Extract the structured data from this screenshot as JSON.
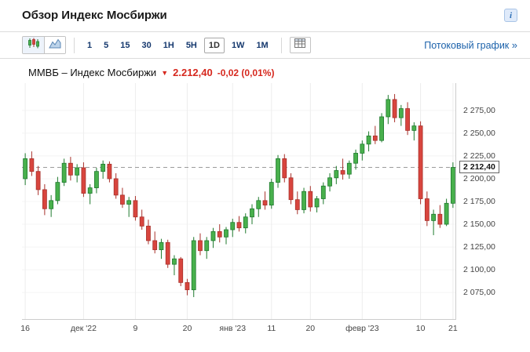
{
  "header": {
    "title": "Обзор Индекс Мосбиржи",
    "info_icon": "i"
  },
  "toolbar": {
    "intervals": [
      "1",
      "5",
      "15",
      "30",
      "1H",
      "5H",
      "1D",
      "1W",
      "1M"
    ],
    "active_interval": "1D",
    "stream_link": "Потоковый график",
    "stream_arrow": "»"
  },
  "chart": {
    "instrument": "ММВБ – Индекс Мосбиржи",
    "direction": "▼",
    "price": "2.212,40",
    "change": "-0,02 (0,01%)",
    "price_axis_label": "2 212,40"
  },
  "chart_data": {
    "type": "candlestick",
    "title": "ММВБ – Индекс Мосбиржи",
    "last_price": 2212.4,
    "change": -0.02,
    "change_pct": -0.01,
    "ylim": [
      2045,
      2305
    ],
    "y_ticks": [
      2275,
      2250,
      2225,
      2200,
      2175,
      2150,
      2125,
      2100,
      2075
    ],
    "y_tick_labels": [
      "2 275,00",
      "2 250,00",
      "2 225,00",
      "2 200,00",
      "2 175,00",
      "2 150,00",
      "2 125,00",
      "2 100,00",
      "2 075,00"
    ],
    "x_ticks": [
      {
        "i": 0,
        "label": "16"
      },
      {
        "i": 9,
        "label": "дек '22"
      },
      {
        "i": 17,
        "label": "9"
      },
      {
        "i": 25,
        "label": "20"
      },
      {
        "i": 32,
        "label": "янв '23"
      },
      {
        "i": 38,
        "label": "11"
      },
      {
        "i": 44,
        "label": "20"
      },
      {
        "i": 52,
        "label": "февр '23"
      },
      {
        "i": 61,
        "label": "10"
      },
      {
        "i": 66,
        "label": "21"
      }
    ],
    "candles": [
      [
        2200,
        2228,
        2193,
        2222
      ],
      [
        2222,
        2230,
        2203,
        2208
      ],
      [
        2208,
        2214,
        2182,
        2188
      ],
      [
        2188,
        2194,
        2160,
        2167
      ],
      [
        2167,
        2182,
        2158,
        2176
      ],
      [
        2176,
        2202,
        2172,
        2196
      ],
      [
        2196,
        2222,
        2192,
        2217
      ],
      [
        2217,
        2224,
        2198,
        2204
      ],
      [
        2204,
        2216,
        2196,
        2212
      ],
      [
        2212,
        2218,
        2180,
        2184
      ],
      [
        2184,
        2194,
        2172,
        2190
      ],
      [
        2190,
        2212,
        2184,
        2208
      ],
      [
        2208,
        2220,
        2200,
        2216
      ],
      [
        2216,
        2219,
        2196,
        2200
      ],
      [
        2200,
        2206,
        2178,
        2182
      ],
      [
        2182,
        2190,
        2168,
        2172
      ],
      [
        2172,
        2180,
        2158,
        2176
      ],
      [
        2176,
        2181,
        2154,
        2158
      ],
      [
        2158,
        2166,
        2144,
        2148
      ],
      [
        2148,
        2155,
        2128,
        2132
      ],
      [
        2132,
        2142,
        2118,
        2122
      ],
      [
        2122,
        2134,
        2112,
        2130
      ],
      [
        2130,
        2133,
        2102,
        2106
      ],
      [
        2106,
        2116,
        2094,
        2112
      ],
      [
        2112,
        2114,
        2082,
        2086
      ],
      [
        2086,
        2090,
        2072,
        2078
      ],
      [
        2078,
        2136,
        2070,
        2132
      ],
      [
        2132,
        2140,
        2116,
        2121
      ],
      [
        2121,
        2136,
        2112,
        2132
      ],
      [
        2132,
        2146,
        2124,
        2142
      ],
      [
        2142,
        2150,
        2130,
        2136
      ],
      [
        2136,
        2147,
        2128,
        2144
      ],
      [
        2144,
        2156,
        2136,
        2152
      ],
      [
        2152,
        2159,
        2142,
        2146
      ],
      [
        2146,
        2162,
        2140,
        2158
      ],
      [
        2158,
        2172,
        2150,
        2167
      ],
      [
        2167,
        2180,
        2158,
        2176
      ],
      [
        2176,
        2186,
        2166,
        2171
      ],
      [
        2171,
        2200,
        2167,
        2196
      ],
      [
        2196,
        2226,
        2190,
        2222
      ],
      [
        2222,
        2227,
        2196,
        2201
      ],
      [
        2201,
        2206,
        2172,
        2177
      ],
      [
        2177,
        2186,
        2161,
        2166
      ],
      [
        2166,
        2190,
        2162,
        2186
      ],
      [
        2186,
        2192,
        2164,
        2169
      ],
      [
        2169,
        2181,
        2163,
        2178
      ],
      [
        2178,
        2196,
        2172,
        2192
      ],
      [
        2192,
        2206,
        2186,
        2201
      ],
      [
        2201,
        2214,
        2194,
        2209
      ],
      [
        2209,
        2222,
        2199,
        2205
      ],
      [
        2205,
        2220,
        2200,
        2217
      ],
      [
        2217,
        2232,
        2210,
        2228
      ],
      [
        2228,
        2242,
        2220,
        2238
      ],
      [
        2238,
        2252,
        2230,
        2247
      ],
      [
        2247,
        2258,
        2238,
        2242
      ],
      [
        2242,
        2272,
        2240,
        2268
      ],
      [
        2268,
        2292,
        2260,
        2287
      ],
      [
        2287,
        2293,
        2262,
        2267
      ],
      [
        2267,
        2281,
        2258,
        2277
      ],
      [
        2277,
        2284,
        2248,
        2253
      ],
      [
        2253,
        2262,
        2242,
        2258
      ],
      [
        2258,
        2263,
        2172,
        2178
      ],
      [
        2178,
        2186,
        2148,
        2154
      ],
      [
        2154,
        2166,
        2138,
        2161
      ],
      [
        2161,
        2171,
        2146,
        2150
      ],
      [
        2150,
        2178,
        2148,
        2173
      ],
      [
        2173,
        2218,
        2168,
        2212.4
      ]
    ],
    "colors": {
      "up": "#48b04c",
      "up_border": "#1f7a2e",
      "down": "#d8453e",
      "down_border": "#a8312b",
      "grid": "#ededed",
      "hgrid": "#f4f4f4",
      "dashed": "#9b9b9b",
      "axis_line": "#cccccc"
    }
  }
}
